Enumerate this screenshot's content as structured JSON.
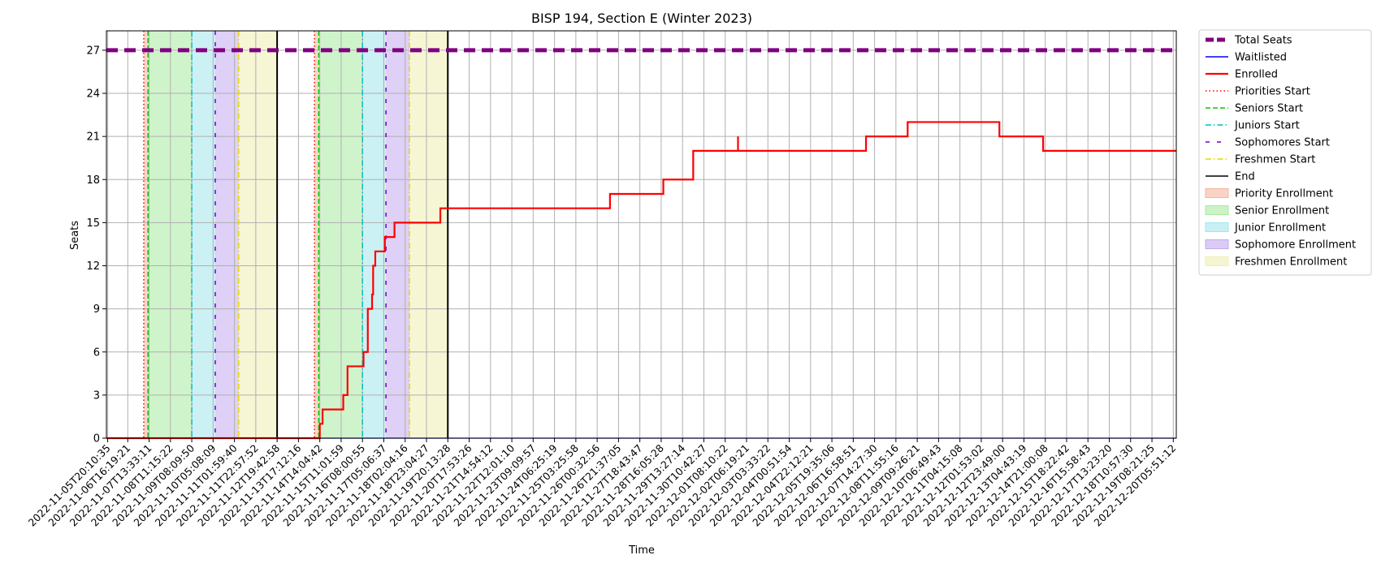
{
  "chart_data": {
    "type": "line",
    "title": "BISP 194, Section E (Winter 2023)",
    "xlabel": "Time",
    "ylabel": "Seats",
    "ylim": [
      0,
      28.35
    ],
    "yticks": [
      0,
      3,
      6,
      9,
      12,
      15,
      18,
      21,
      24,
      27
    ],
    "x_tick_labels": [
      "2022-11-05T20:10:35",
      "2022-11-06T16:19:21",
      "2022-11-07T13:33:11",
      "2022-11-08T11:15:22",
      "2022-11-09T08:09:50",
      "2022-11-10T05:08:09",
      "2022-11-11T01:59:40",
      "2022-11-11T22:57:52",
      "2022-11-12T19:42:58",
      "2022-11-13T17:12:16",
      "2022-11-14T14:04:42",
      "2022-11-15T11:01:59",
      "2022-11-16T08:00:55",
      "2022-11-17T05:06:37",
      "2022-11-18T02:04:16",
      "2022-11-18T23:04:27",
      "2022-11-19T20:13:28",
      "2022-11-20T17:53:26",
      "2022-11-21T14:54:12",
      "2022-11-22T12:01:10",
      "2022-11-23T09:09:57",
      "2022-11-24T06:25:19",
      "2022-11-25T03:25:58",
      "2022-11-26T00:32:56",
      "2022-11-26T21:37:05",
      "2022-11-27T18:43:47",
      "2022-11-28T16:05:28",
      "2022-11-29T13:27:14",
      "2022-11-30T10:42:27",
      "2022-12-01T08:10:22",
      "2022-12-02T06:19:21",
      "2022-12-03T03:33:22",
      "2022-12-04T00:51:54",
      "2022-12-04T22:12:21",
      "2022-12-05T19:35:06",
      "2022-12-06T16:58:51",
      "2022-12-07T14:27:30",
      "2022-12-08T11:55:16",
      "2022-12-09T09:26:21",
      "2022-12-10T06:49:43",
      "2022-12-11T04:15:08",
      "2022-12-12T01:53:02",
      "2022-12-12T23:49:00",
      "2022-12-13T04:43:19",
      "2022-12-14T21:00:08",
      "2022-12-15T18:22:42",
      "2022-12-16T15:58:43",
      "2022-12-17T13:23:20",
      "2022-12-18T10:57:30",
      "2022-12-19T08:21:25",
      "2022-12-20T05:51:12"
    ],
    "x_tick_positions": [
      0.06,
      1,
      2,
      3,
      4,
      5,
      6,
      7,
      8,
      9,
      10,
      11,
      12,
      13,
      14,
      15,
      16,
      17,
      18,
      19,
      20,
      21,
      22,
      23,
      24,
      25,
      26,
      27,
      28,
      29,
      30,
      31,
      32,
      33,
      34,
      35,
      36,
      37,
      38,
      39,
      40,
      41,
      42,
      43,
      44,
      45,
      46,
      47,
      48,
      49,
      50
    ],
    "xlim": [
      0,
      50.14
    ],
    "grid": true,
    "legend_position": "outside-right",
    "series": [
      {
        "name": "Total Seats",
        "color": "#800080",
        "style": "dashed-thick",
        "points": [
          [
            0,
            27
          ],
          [
            50.14,
            27
          ]
        ]
      },
      {
        "name": "Waitlisted",
        "color": "#0000ff",
        "style": "solid",
        "points": [
          [
            0,
            0
          ],
          [
            50.14,
            0
          ]
        ]
      },
      {
        "name": "Enrolled",
        "color": "#ff0000",
        "style": "step",
        "points": [
          [
            0,
            0
          ],
          [
            10.0,
            0
          ],
          [
            10.0,
            1
          ],
          [
            10.13,
            1
          ],
          [
            10.13,
            2
          ],
          [
            11.1,
            2
          ],
          [
            11.1,
            3
          ],
          [
            11.3,
            3
          ],
          [
            11.3,
            5
          ],
          [
            12.05,
            5
          ],
          [
            12.05,
            6
          ],
          [
            12.25,
            6
          ],
          [
            12.25,
            9
          ],
          [
            12.45,
            9
          ],
          [
            12.45,
            10
          ],
          [
            12.5,
            10
          ],
          [
            12.5,
            12
          ],
          [
            12.6,
            12
          ],
          [
            12.6,
            13
          ],
          [
            13.05,
            13
          ],
          [
            13.05,
            14
          ],
          [
            13.5,
            14
          ],
          [
            13.5,
            15
          ],
          [
            15.65,
            15
          ],
          [
            15.65,
            16
          ],
          [
            23.6,
            16
          ],
          [
            23.6,
            17
          ],
          [
            26.1,
            17
          ],
          [
            26.1,
            18
          ],
          [
            27.5,
            18
          ],
          [
            27.5,
            20
          ],
          [
            29.6,
            20
          ],
          [
            29.6,
            21
          ],
          [
            29.6,
            20
          ],
          [
            35.6,
            20
          ],
          [
            35.6,
            21
          ],
          [
            37.55,
            21
          ],
          [
            37.55,
            22
          ],
          [
            41.85,
            22
          ],
          [
            41.85,
            21
          ],
          [
            43.9,
            21
          ],
          [
            43.9,
            20
          ],
          [
            50.14,
            20
          ]
        ]
      }
    ],
    "markers": [
      {
        "name": "Priorities Start",
        "color": "#ff0000",
        "style": "dotted",
        "x": [
          1.75,
          9.75
        ]
      },
      {
        "name": "Seniors Start",
        "color": "#00cc00",
        "style": "dashed",
        "x": [
          1.95,
          9.95
        ]
      },
      {
        "name": "Juniors Start",
        "color": "#00bfbf",
        "style": "dashdot",
        "x": [
          4.0,
          12.0
        ]
      },
      {
        "name": "Sophomores Start",
        "color": "#6600cc",
        "style": "loosedash",
        "x": [
          5.1,
          13.1
        ]
      },
      {
        "name": "Freshmen Start",
        "color": "#e6d600",
        "style": "dashdot",
        "x": [
          6.2,
          14.2
        ]
      },
      {
        "name": "End",
        "color": "#000000",
        "style": "solid",
        "x": [
          8.0,
          16.0
        ]
      }
    ],
    "bands": [
      {
        "name": "Priority Enrollment",
        "color": "#f4b6a0",
        "ranges": [
          [
            1.75,
            1.95
          ],
          [
            9.75,
            9.95
          ]
        ]
      },
      {
        "name": "Senior Enrollment",
        "color": "#a8eba0",
        "ranges": [
          [
            1.95,
            4.0
          ],
          [
            9.95,
            12.0
          ]
        ]
      },
      {
        "name": "Junior Enrollment",
        "color": "#a3e6ec",
        "ranges": [
          [
            4.0,
            5.1
          ],
          [
            12.0,
            13.1
          ]
        ]
      },
      {
        "name": "Sophomore Enrollment",
        "color": "#c2aaee",
        "ranges": [
          [
            5.1,
            6.2
          ],
          [
            13.1,
            14.2
          ]
        ]
      },
      {
        "name": "Freshmen Enrollment",
        "color": "#efefb3",
        "ranges": [
          [
            6.2,
            8.0
          ],
          [
            14.2,
            16.0
          ]
        ]
      }
    ],
    "legend": [
      {
        "label": "Total Seats",
        "kind": "line",
        "color": "#800080",
        "style": "dashed-thick"
      },
      {
        "label": "Waitlisted",
        "kind": "line",
        "color": "#0000ff",
        "style": "solid"
      },
      {
        "label": "Enrolled",
        "kind": "line",
        "color": "#ff0000",
        "style": "solid-thick"
      },
      {
        "label": "Priorities Start",
        "kind": "line",
        "color": "#ff0000",
        "style": "dotted"
      },
      {
        "label": "Seniors Start",
        "kind": "line",
        "color": "#00cc00",
        "style": "dashed"
      },
      {
        "label": "Juniors Start",
        "kind": "line",
        "color": "#00bfbf",
        "style": "dashdot"
      },
      {
        "label": "Sophomores Start",
        "kind": "line",
        "color": "#6600cc",
        "style": "loosedash"
      },
      {
        "label": "Freshmen Start",
        "kind": "line",
        "color": "#e6d600",
        "style": "dashdot"
      },
      {
        "label": "End",
        "kind": "line",
        "color": "#000000",
        "style": "solid"
      },
      {
        "label": "Priority Enrollment",
        "kind": "patch",
        "color": "#f4b6a0"
      },
      {
        "label": "Senior Enrollment",
        "kind": "patch",
        "color": "#a8eba0"
      },
      {
        "label": "Junior Enrollment",
        "kind": "patch",
        "color": "#a3e6ec"
      },
      {
        "label": "Sophomore Enrollment",
        "kind": "patch",
        "color": "#c2aaee"
      },
      {
        "label": "Freshmen Enrollment",
        "kind": "patch",
        "color": "#efefb3"
      }
    ]
  }
}
